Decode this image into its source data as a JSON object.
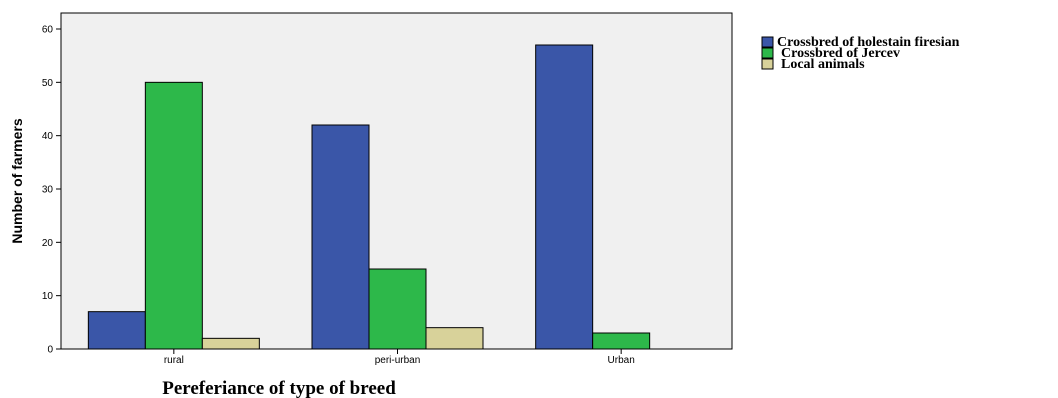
{
  "chart_data": {
    "type": "bar",
    "title": "",
    "xlabel": "Pereferiance of type of breed",
    "ylabel": "Number of farmers",
    "categories": [
      "rural",
      "peri-urban",
      "Urban"
    ],
    "series": [
      {
        "name": "Crossbred of holestain firesian",
        "color": "#3A56A8",
        "values": [
          7,
          42,
          57
        ]
      },
      {
        "name": "Crossbred of Jercev",
        "color": "#2DB84A",
        "values": [
          50,
          15,
          3
        ]
      },
      {
        "name": "Local animals",
        "color": "#D8D29A",
        "values": [
          2,
          4,
          0
        ]
      }
    ],
    "ylim": [
      0,
      63
    ],
    "yticks": [
      0,
      10,
      20,
      30,
      40,
      50,
      60
    ],
    "grid": false,
    "legend": "top-right",
    "plot_background": "#F0F0F0"
  }
}
